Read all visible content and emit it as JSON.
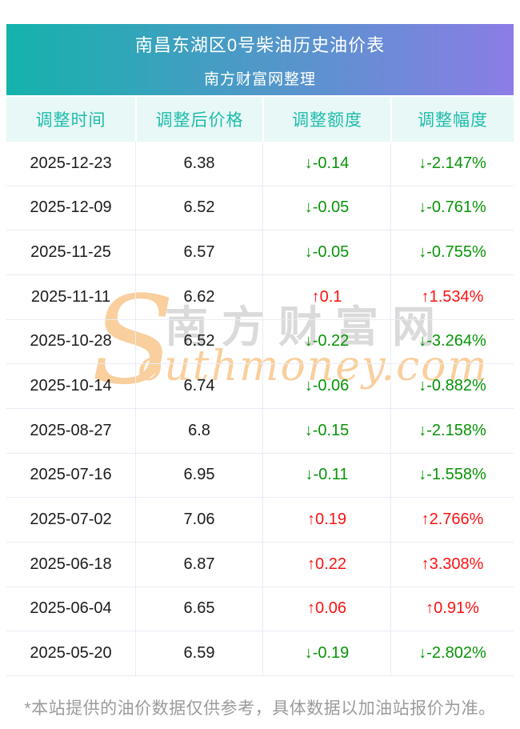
{
  "banner": {
    "title": "南昌东湖区0号柴油历史油价表",
    "subtitle": "南方财富网整理",
    "gradient_left": "#14b3ab",
    "gradient_right": "#8b7de6"
  },
  "table": {
    "headers": [
      "调整时间",
      "调整后价格",
      "调整额度",
      "调整幅度"
    ],
    "rows": [
      {
        "date": "2025-12-23",
        "price": "6.38",
        "change": "↓-0.14",
        "percent": "↓-2.147%",
        "direction": "down"
      },
      {
        "date": "2025-12-09",
        "price": "6.52",
        "change": "↓-0.05",
        "percent": "↓-0.761%",
        "direction": "down"
      },
      {
        "date": "2025-11-25",
        "price": "6.57",
        "change": "↓-0.05",
        "percent": "↓-0.755%",
        "direction": "down"
      },
      {
        "date": "2025-11-11",
        "price": "6.62",
        "change": "↑0.1",
        "percent": "↑1.534%",
        "direction": "up"
      },
      {
        "date": "2025-10-28",
        "price": "6.52",
        "change": "↓-0.22",
        "percent": "↓-3.264%",
        "direction": "down"
      },
      {
        "date": "2025-10-14",
        "price": "6.74",
        "change": "↓-0.06",
        "percent": "↓-0.882%",
        "direction": "down"
      },
      {
        "date": "2025-08-27",
        "price": "6.8",
        "change": "↓-0.15",
        "percent": "↓-2.158%",
        "direction": "down"
      },
      {
        "date": "2025-07-16",
        "price": "6.95",
        "change": "↓-0.11",
        "percent": "↓-1.558%",
        "direction": "down"
      },
      {
        "date": "2025-07-02",
        "price": "7.06",
        "change": "↑0.19",
        "percent": "↑2.766%",
        "direction": "up"
      },
      {
        "date": "2025-06-18",
        "price": "6.87",
        "change": "↑0.22",
        "percent": "↑3.308%",
        "direction": "up"
      },
      {
        "date": "2025-06-04",
        "price": "6.65",
        "change": "↑0.06",
        "percent": "↑0.91%",
        "direction": "up"
      },
      {
        "date": "2025-05-20",
        "price": "6.59",
        "change": "↓-0.19",
        "percent": "↓-2.802%",
        "direction": "down"
      }
    ]
  },
  "watermark": {
    "initial": "S",
    "cn_text": "南方财富网",
    "en_text": "outhmoney.com"
  },
  "footer": {
    "note": "*本站提供的油价数据仅供参考，具体数据以加油站报价为准。"
  },
  "colors": {
    "up_red": "#fd1212",
    "down_green": "#089408",
    "header_text": "#1fbcab",
    "header_bg": "#e8f8f6",
    "grid_line": "#e9ecf4",
    "body_text": "#1c1c1c",
    "footer_text": "#9b9b9b",
    "watermark_orange": "#f9cf9d",
    "watermark_gray": "#dadada"
  }
}
